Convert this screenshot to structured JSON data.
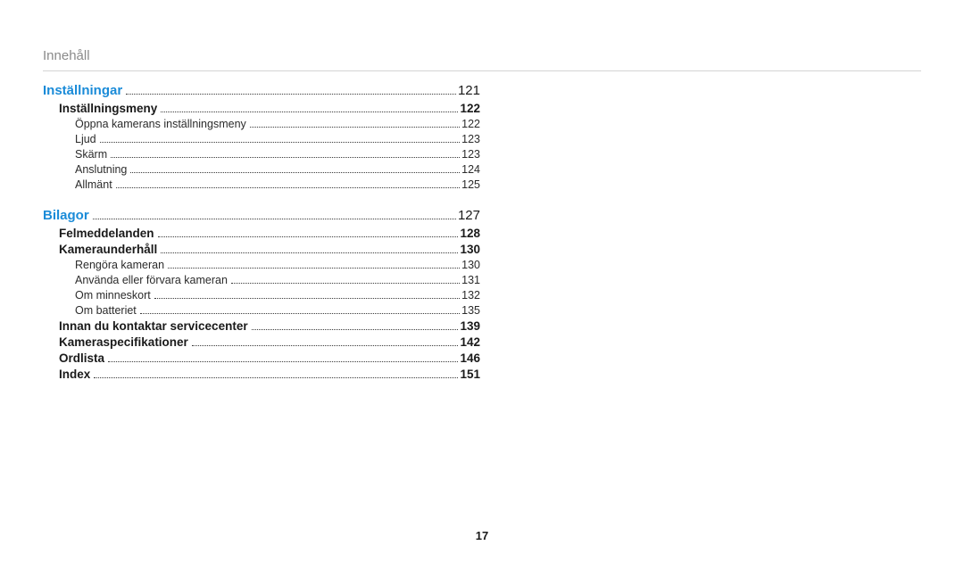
{
  "header": {
    "title": "Innehåll"
  },
  "page_number": "17",
  "colors": {
    "section_accent": "#1a8bd8",
    "header_gray": "#8a8a8a",
    "text": "#1a1a1a",
    "rule": "#d4d4d4",
    "background": "#ffffff"
  },
  "toc": {
    "sections": [
      {
        "title": "Inställningar",
        "page": "121",
        "subs": [
          {
            "title": "Inställningsmeny",
            "page": "122",
            "items": [
              {
                "title": "Öppna kamerans inställningsmeny",
                "page": "122"
              },
              {
                "title": "Ljud",
                "page": "123"
              },
              {
                "title": "Skärm",
                "page": "123"
              },
              {
                "title": "Anslutning",
                "page": "124"
              },
              {
                "title": "Allmänt",
                "page": "125"
              }
            ]
          }
        ]
      },
      {
        "title": "Bilagor",
        "page": "127",
        "subs": [
          {
            "title": "Felmeddelanden",
            "page": "128",
            "items": []
          },
          {
            "title": "Kameraunderhåll",
            "page": "130",
            "items": [
              {
                "title": "Rengöra kameran",
                "page": "130"
              },
              {
                "title": "Använda eller förvara kameran",
                "page": "131"
              },
              {
                "title": "Om minneskort",
                "page": "132"
              },
              {
                "title": "Om batteriet",
                "page": "135"
              }
            ]
          },
          {
            "title": "Innan du kontaktar servicecenter",
            "page": "139",
            "items": []
          },
          {
            "title": "Kameraspecifikationer",
            "page": "142",
            "items": []
          },
          {
            "title": "Ordlista",
            "page": "146",
            "items": []
          },
          {
            "title": "Index",
            "page": "151",
            "items": []
          }
        ]
      }
    ]
  }
}
